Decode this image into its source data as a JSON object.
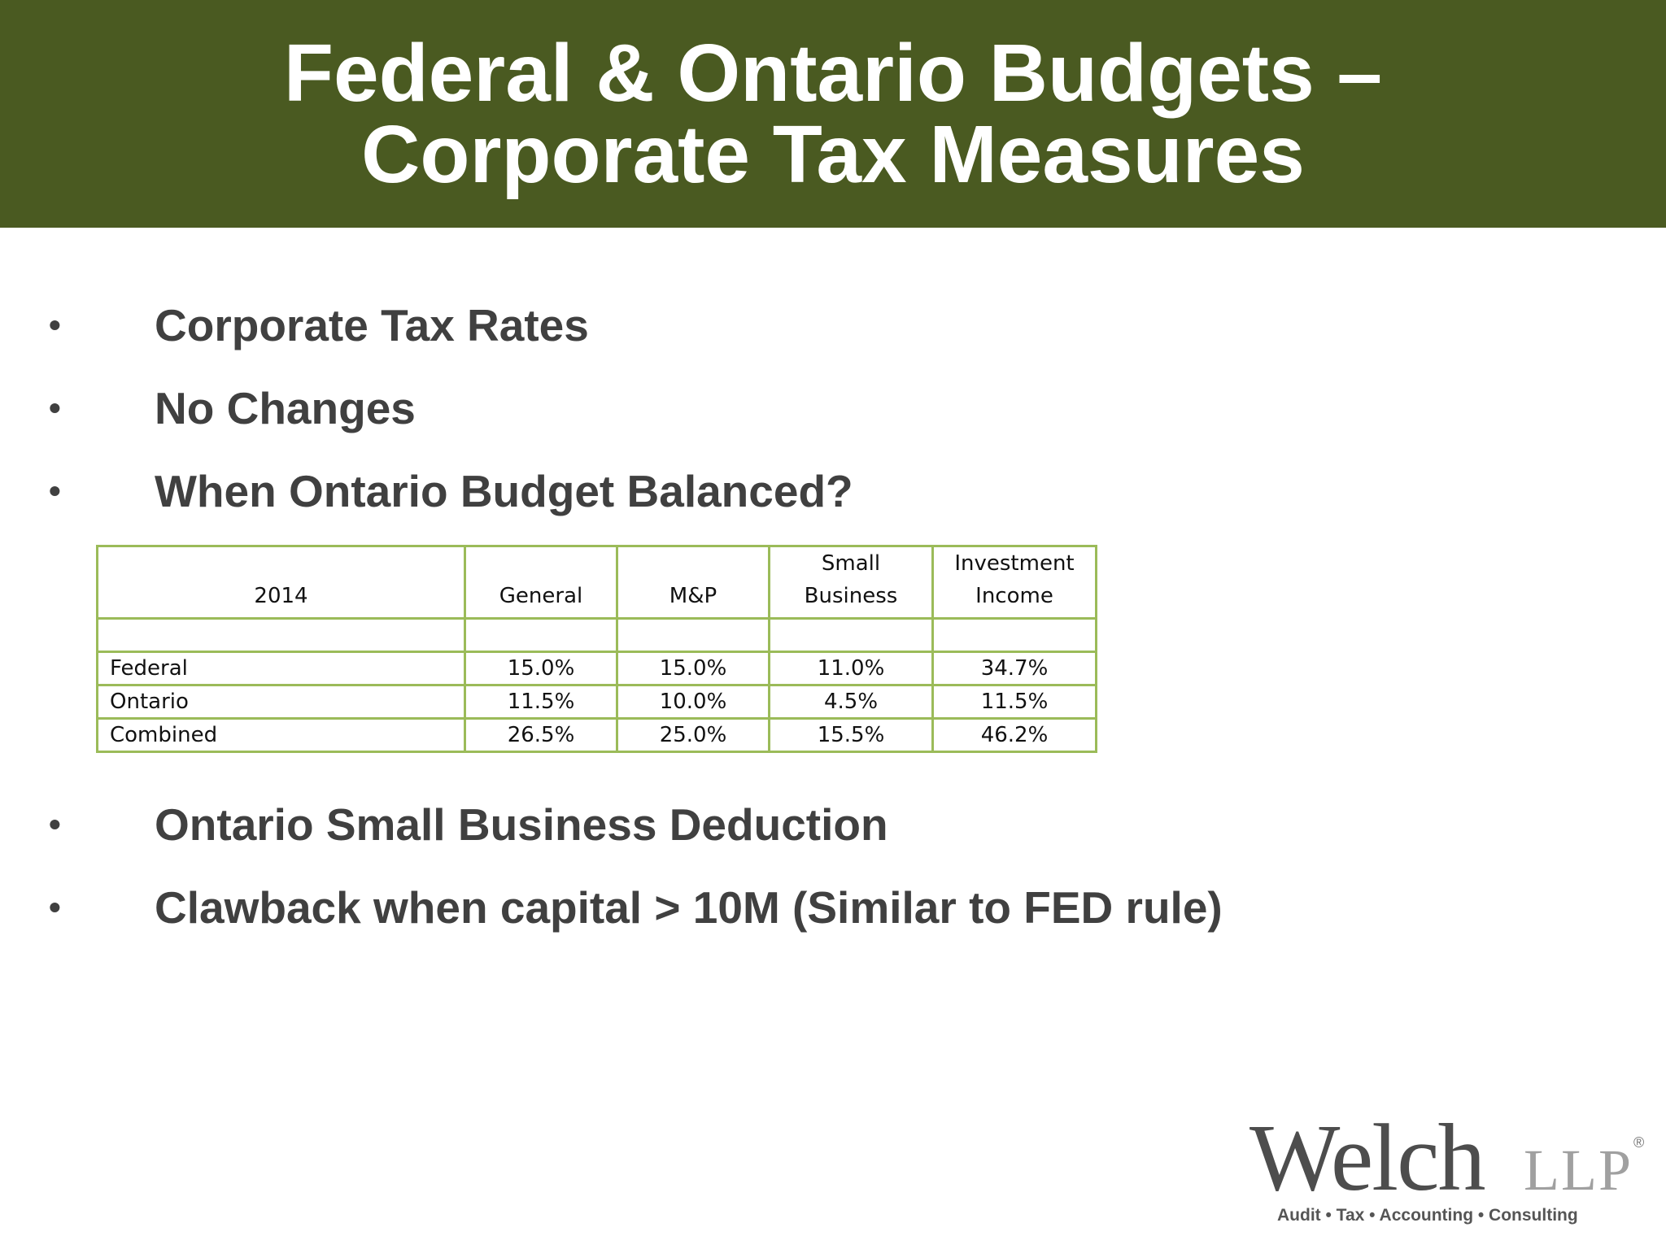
{
  "title": {
    "line1": "Federal & Ontario Budgets –",
    "line2": "Corporate Tax Measures"
  },
  "bullet_char": "•",
  "bullets_top": [
    "Corporate Tax Rates",
    "No Changes",
    "When Ontario Budget Balanced?"
  ],
  "table": {
    "headers": [
      "2014",
      "General",
      "M&P",
      "Small\nBusiness",
      "Investment\nIncome"
    ],
    "rows": [
      [
        "",
        "",
        "",
        "",
        ""
      ],
      [
        "Federal",
        "15.0%",
        "15.0%",
        "11.0%",
        "34.7%"
      ],
      [
        "Ontario",
        "11.5%",
        "10.0%",
        "4.5%",
        "11.5%"
      ],
      [
        "Combined",
        "26.5%",
        "25.0%",
        "15.5%",
        "46.2%"
      ]
    ]
  },
  "bullets_bottom": [
    "Ontario Small Business Deduction",
    "Clawback when capital > 10M (Similar to FED rule)"
  ],
  "logo": {
    "word": "Welch",
    "suffix": "LLP",
    "registered": "®",
    "tagline": "Audit • Tax • Accounting • Consulting"
  },
  "colors": {
    "title_bar": "#4a5a21",
    "table_border": "#9bbb59",
    "bullet_text": "#404040"
  }
}
